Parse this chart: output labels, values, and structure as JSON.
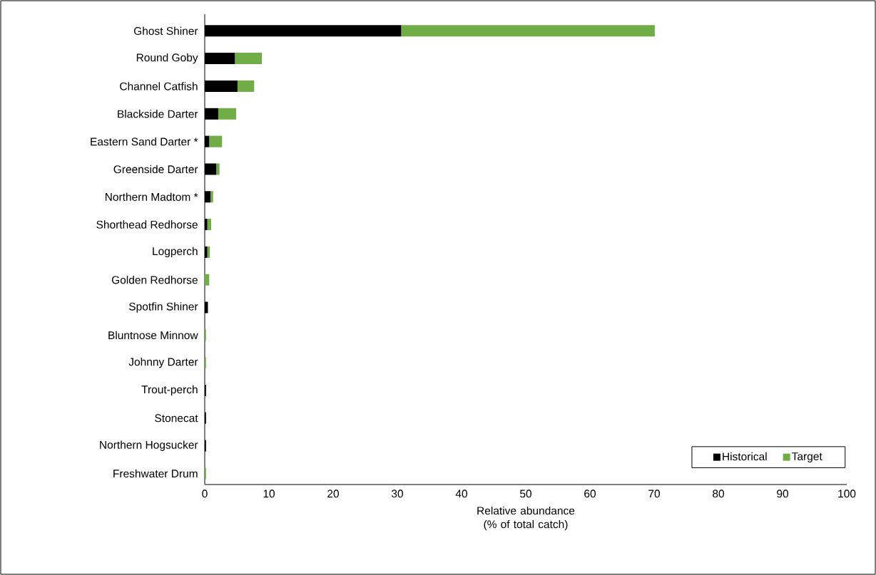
{
  "chart_data": {
    "type": "bar",
    "orientation": "horizontal",
    "stacked": true,
    "categories": [
      "Ghost Shiner",
      "Round Goby",
      "Channel Catfish",
      "Blackside Darter",
      "Eastern Sand Darter *",
      "Greenside Darter",
      "Northern Madtom *",
      "Shorthead Redhorse",
      "Logperch",
      "Golden Redhorse",
      "Spotfin Shiner",
      "Bluntnose Minnow",
      "Johnny Darter",
      "Trout-perch",
      "Stonecat",
      "Northern Hogsucker",
      "Freshwater Drum"
    ],
    "series": [
      {
        "name": "Historical",
        "color": "#000000",
        "values": [
          30.6,
          4.7,
          5.1,
          2.1,
          0.7,
          1.8,
          0.9,
          0.4,
          0.4,
          0,
          0.5,
          0,
          0,
          0.2,
          0.2,
          0.2,
          0
        ]
      },
      {
        "name": "Target",
        "color": "#70ad47",
        "values": [
          39.5,
          4.2,
          2.6,
          2.8,
          2.0,
          0.5,
          0.4,
          0.6,
          0.4,
          0.7,
          0,
          0.2,
          0.2,
          0,
          0,
          0,
          0.2
        ]
      }
    ],
    "xlabel": "Relative abundance (% of total catch)",
    "xlim": [
      0,
      100
    ],
    "xticks": [
      0,
      10,
      20,
      30,
      40,
      50,
      60,
      70,
      80,
      90,
      100
    ],
    "legend": "bottom right"
  }
}
